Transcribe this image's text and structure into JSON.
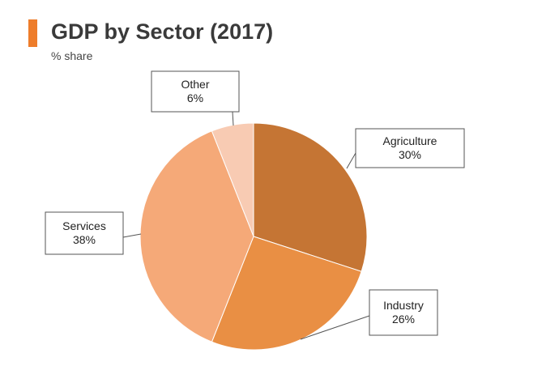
{
  "header": {
    "title": "GDP by Sector (2017)",
    "subtitle": "% share",
    "accent_color": "#ee7d2b"
  },
  "chart_data": {
    "type": "pie",
    "title": "GDP by Sector (2017)",
    "subtitle": "% share",
    "unit": "%",
    "slices": [
      {
        "label": "Agriculture",
        "value": 30,
        "display": "30%",
        "color": "#c57534"
      },
      {
        "label": "Industry",
        "value": 26,
        "display": "26%",
        "color": "#e98f44"
      },
      {
        "label": "Services",
        "value": 38,
        "display": "38%",
        "color": "#f5a978"
      },
      {
        "label": "Other",
        "value": 6,
        "display": "6%",
        "color": "#f8cbb3"
      }
    ],
    "start_angle": "12 o'clock",
    "direction": "clockwise",
    "labels": "callout boxes",
    "legend": "none"
  }
}
